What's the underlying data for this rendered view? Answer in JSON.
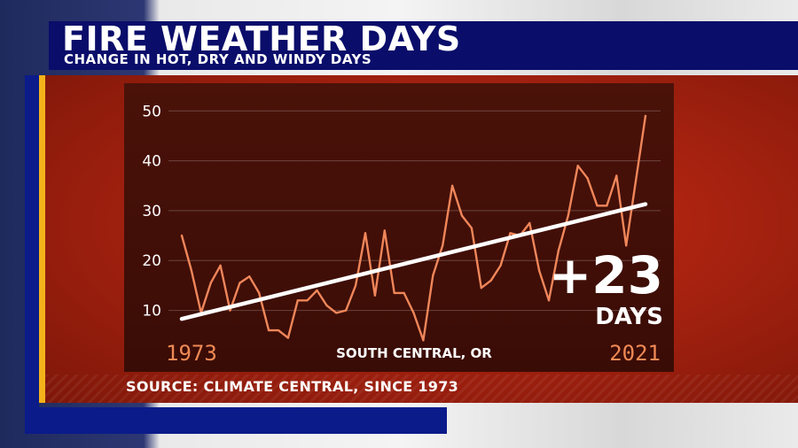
{
  "header": {
    "title": "FIRE WEATHER DAYS",
    "subtitle": "CHANGE IN HOT, DRY AND WINDY DAYS"
  },
  "footer": {
    "source": "SOURCE: CLIMATE CENTRAL, SINCE 1973"
  },
  "colors": {
    "series_line": "#f0865a",
    "trend_line": "#ffffff",
    "title_bar": "#0a0d6a",
    "panel_red": "#b3240f",
    "chart_bg": "#3f0f07",
    "accent_gold": "#f3b21a"
  },
  "chart_data": {
    "type": "line",
    "title": "",
    "xlabel": "",
    "ylabel": "",
    "region": "SOUTH CENTRAL, OR",
    "start_label": "1973",
    "end_label": "2021",
    "change_label": "+23",
    "change_unit": "DAYS",
    "xlim": [
      1973,
      2021
    ],
    "ylim": [
      3,
      52
    ],
    "yticks": [
      10,
      20,
      30,
      40,
      50
    ],
    "grid": true,
    "series": [
      {
        "values": [
          [
            1973,
            25
          ],
          [
            1974,
            18
          ],
          [
            1975,
            9.5
          ],
          [
            1976,
            15.5
          ],
          [
            1977,
            19
          ],
          [
            1978,
            10
          ],
          [
            1979,
            15.5
          ],
          [
            1980,
            16.8
          ],
          [
            1981,
            13.5
          ],
          [
            1982,
            6
          ],
          [
            1983,
            6
          ],
          [
            1984,
            4.5
          ],
          [
            1985,
            12
          ],
          [
            1986,
            12
          ],
          [
            1987,
            14
          ],
          [
            1988,
            11
          ],
          [
            1989,
            9.5
          ],
          [
            1990,
            10
          ],
          [
            1991,
            15
          ],
          [
            1992,
            25.5
          ],
          [
            1993,
            13
          ],
          [
            1994,
            26
          ],
          [
            1995,
            13.5
          ],
          [
            1996,
            13.5
          ],
          [
            1997,
            9.5
          ],
          [
            1998,
            4
          ],
          [
            1999,
            17
          ],
          [
            2000,
            23
          ],
          [
            2001,
            35
          ],
          [
            2002,
            29
          ],
          [
            2003,
            26.5
          ],
          [
            2004,
            14.5
          ],
          [
            2005,
            16
          ],
          [
            2006,
            19
          ],
          [
            2007,
            25.5
          ],
          [
            2008,
            25
          ],
          [
            2009,
            27.5
          ],
          [
            2010,
            18
          ],
          [
            2011,
            12
          ],
          [
            2012,
            22
          ],
          [
            2013,
            29
          ],
          [
            2014,
            39
          ],
          [
            2015,
            36.5
          ],
          [
            2016,
            31
          ],
          [
            2017,
            31
          ],
          [
            2018,
            37
          ],
          [
            2019,
            23
          ],
          [
            2020,
            36
          ],
          [
            2021,
            49
          ]
        ]
      }
    ],
    "trend": {
      "start": [
        1973,
        8.3
      ],
      "end": [
        2021,
        31.3
      ]
    }
  }
}
